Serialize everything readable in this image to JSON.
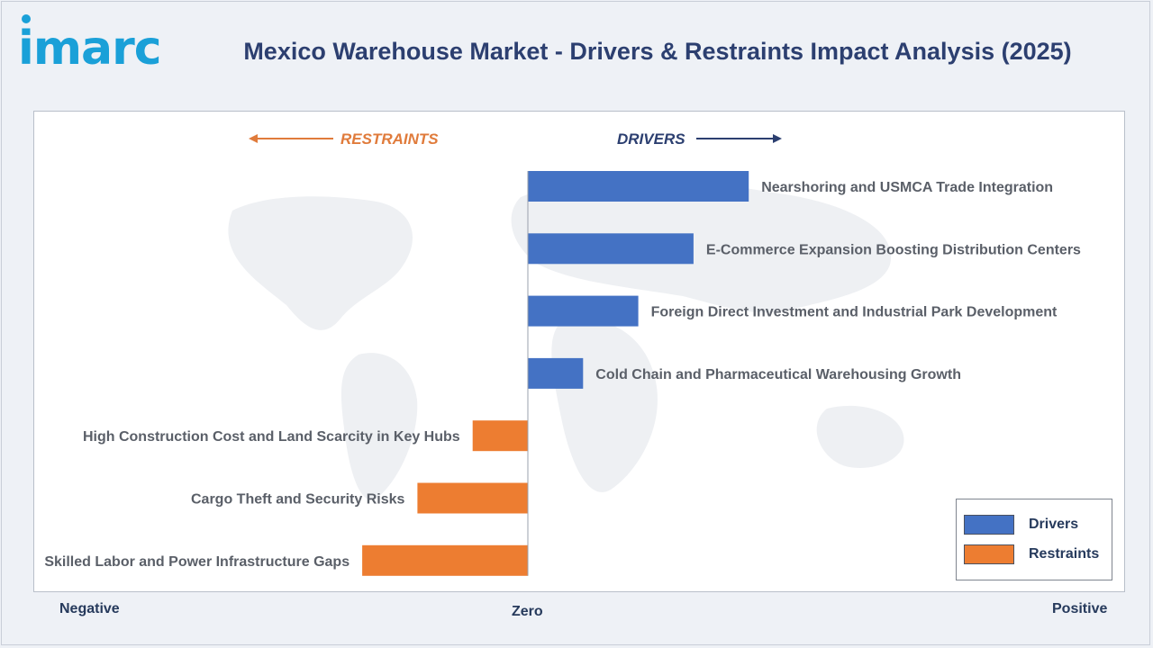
{
  "brand": {
    "logo_text": "imarc",
    "color": "#1aa0d8"
  },
  "title": "Mexico Warehouse Market - Drivers & Restraints Impact Analysis (2025)",
  "axis": {
    "negative": "Negative",
    "zero": "Zero",
    "positive": "Positive"
  },
  "direction": {
    "restraints": "RESTRAINTS",
    "drivers": "DRIVERS"
  },
  "legend": {
    "drivers": "Drivers",
    "restraints": "Restraints"
  },
  "colors": {
    "drivers": "#4472c4",
    "restraints": "#ed7d31",
    "title": "#2c3f70",
    "restraints_label": "#e07b3b",
    "drivers_label": "#2c3f70"
  },
  "chart_data": {
    "type": "bar",
    "orientation": "horizontal",
    "xlim": [
      -3,
      5.5
    ],
    "categories": [
      "Nearshoring and USMCA Trade Integration",
      "E-Commerce Expansion Boosting Distribution Centers",
      "Foreign Direct Investment and Industrial Park Development",
      "Cold Chain and Pharmaceutical Warehousing Growth",
      "High Construction Cost and Land Scarcity in Key Hubs",
      "Cargo Theft and Security Risks",
      "Skilled Labor and Power Infrastructure Gaps"
    ],
    "series": [
      {
        "name": "Drivers",
        "values": [
          4,
          3,
          2,
          1,
          null,
          null,
          null
        ]
      },
      {
        "name": "Restraints",
        "values": [
          null,
          null,
          null,
          null,
          -1,
          -2,
          -3
        ]
      }
    ],
    "legend_position": "bottom-right",
    "grid": false
  }
}
